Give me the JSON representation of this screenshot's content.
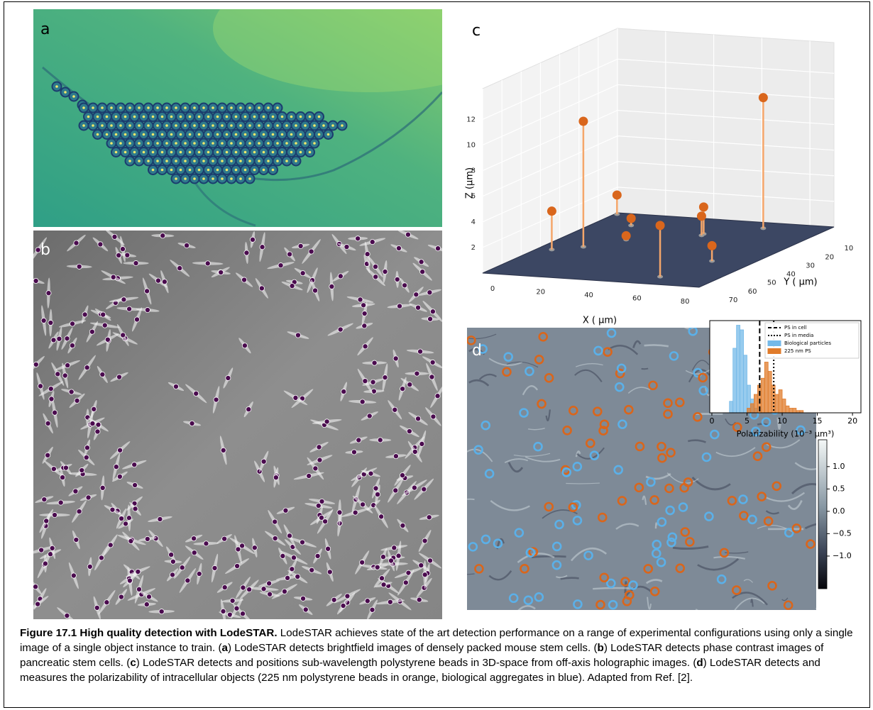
{
  "panel_labels": [
    "a",
    "b",
    "c",
    "d"
  ],
  "chart_data": [
    {
      "type": "scatter3d",
      "xlabel": "X ( μm)",
      "ylabel": "Y ( μm)",
      "zlabel": "Z (μm)",
      "xlim": [
        0,
        90
      ],
      "ylim": [
        0,
        70
      ],
      "zlim": [
        0,
        14.4
      ],
      "xticks": [
        0,
        20,
        40,
        60,
        80
      ],
      "yticks": [
        10,
        20,
        30,
        40,
        50,
        60,
        70
      ],
      "zticks": [
        2,
        4,
        6,
        8,
        10,
        12
      ],
      "color": "#d9661c",
      "x": [
        6,
        15.2,
        1,
        15.2,
        24.9,
        67.3,
        48.4,
        48.8,
        73.4,
        65.4
      ],
      "y": [
        41.6,
        36.7,
        1.5,
        11.9,
        26.6,
        61.9,
        15.7,
        17.3,
        42.6,
        6
      ],
      "z": [
        3,
        9.8,
        1.5,
        0.55,
        0.3,
        4,
        2.1,
        1.5,
        1.2,
        10.2
      ]
    },
    {
      "type": "histogram",
      "xlabel": "Polarizability (10⁻³ μm³)",
      "xlim": [
        -0.3,
        21.2
      ],
      "ylim": [
        0,
        40
      ],
      "xticks": [
        0,
        5,
        10,
        15,
        20
      ],
      "series": [
        {
          "name": "Biological particles",
          "color": "#74b9e8",
          "bins": [
            2.5,
            3,
            3.5,
            4,
            4.5,
            5,
            5.5,
            6,
            6.5
          ],
          "values": [
            5,
            28,
            38,
            36,
            25,
            12,
            6,
            2
          ]
        },
        {
          "name": "225 nm PS",
          "color": "#e07b2a",
          "bins": [
            5,
            5.5,
            6,
            6.5,
            7,
            7.5,
            8,
            8.5,
            9,
            9.5,
            10,
            10.5,
            11,
            11.5,
            12,
            12.5,
            13
          ],
          "values": [
            2,
            4,
            8,
            12,
            15,
            22,
            18,
            12,
            8,
            10,
            6,
            3,
            2,
            2,
            1,
            1
          ]
        }
      ],
      "vlines": [
        {
          "name": "PS in cell",
          "value": 6.8,
          "style": "dashed"
        },
        {
          "name": "PS in media",
          "value": 8.8,
          "style": "dotted"
        }
      ]
    },
    {
      "type": "colorbar",
      "ylim": [
        -1.73,
        1.6
      ],
      "yticks": [
        {
          "value": 1,
          "label": "1.0"
        },
        {
          "value": 0.5,
          "label": "0.5"
        },
        {
          "value": 0,
          "label": "0.0"
        },
        {
          "value": -0.5,
          "label": "−0.5"
        },
        {
          "value": -1,
          "label": "−1.0"
        }
      ]
    }
  ],
  "caption": {
    "title": "Figure 17.1 High quality detection with LodeSTAR.",
    "intro": " LodeSTAR achieves state of the art detection performance on a range of experimental configurations using only a single image of a single object instance to train.",
    "items": [
      {
        "open": " (",
        "letter": "a",
        "text": ") LodeSTAR detects brightfield images of densely packed mouse stem cells."
      },
      {
        "open": " (",
        "letter": "b",
        "text": ") LodeSTAR detects phase contrast images of pancreatic stem cells."
      },
      {
        "open": " (",
        "letter": "c",
        "text": ") LodeSTAR detects and positions sub-wavelength polystyrene beads in 3D-space from off-axis holographic images."
      },
      {
        "open": " (",
        "letter": "d",
        "text": ") LodeSTAR detects and measures the polarizability of intracellular objects (225 nm polystyrene beads in orange, biological aggregates in blue)."
      }
    ],
    "ending": " Adapted from Ref. [2]."
  }
}
